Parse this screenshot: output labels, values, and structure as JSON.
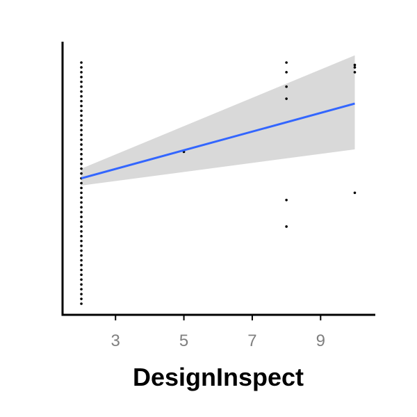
{
  "chart_data": {
    "type": "scatter",
    "title": "",
    "xlabel": "DesignInspect",
    "ylabel": "",
    "xlim": [
      1.45,
      10.6
    ],
    "ylim": [
      -0.05,
      1.07
    ],
    "x_ticks": [
      3,
      5,
      7,
      9
    ],
    "x_tick_labels": [
      "3",
      "5",
      "7",
      "9"
    ],
    "y_ticks": [],
    "grid": false,
    "legend": "none",
    "colors": {
      "points": "#000000",
      "fit_line": "#3366FF",
      "confidence_band": "#D9D9D9",
      "axis": "#000000",
      "tick_label": "#7F7F7F"
    },
    "series": [
      {
        "type": "scatter",
        "points": [
          {
            "x": 2,
            "y": 0.0
          },
          {
            "x": 2,
            "y": 0.02
          },
          {
            "x": 2,
            "y": 0.04
          },
          {
            "x": 2,
            "y": 0.06
          },
          {
            "x": 2,
            "y": 0.08
          },
          {
            "x": 2,
            "y": 0.1
          },
          {
            "x": 2,
            "y": 0.12
          },
          {
            "x": 2,
            "y": 0.14
          },
          {
            "x": 2,
            "y": 0.16
          },
          {
            "x": 2,
            "y": 0.18
          },
          {
            "x": 2,
            "y": 0.2
          },
          {
            "x": 2,
            "y": 0.22
          },
          {
            "x": 2,
            "y": 0.24
          },
          {
            "x": 2,
            "y": 0.26
          },
          {
            "x": 2,
            "y": 0.28
          },
          {
            "x": 2,
            "y": 0.3
          },
          {
            "x": 2,
            "y": 0.32
          },
          {
            "x": 2,
            "y": 0.34
          },
          {
            "x": 2,
            "y": 0.36
          },
          {
            "x": 2,
            "y": 0.38
          },
          {
            "x": 2,
            "y": 0.4
          },
          {
            "x": 2,
            "y": 0.42
          },
          {
            "x": 2,
            "y": 0.44
          },
          {
            "x": 2,
            "y": 0.46
          },
          {
            "x": 2,
            "y": 0.48
          },
          {
            "x": 2,
            "y": 0.5
          },
          {
            "x": 2,
            "y": 0.52
          },
          {
            "x": 2,
            "y": 0.54
          },
          {
            "x": 2,
            "y": 0.56
          },
          {
            "x": 2,
            "y": 0.58
          },
          {
            "x": 2,
            "y": 0.6
          },
          {
            "x": 2,
            "y": 0.62
          },
          {
            "x": 2,
            "y": 0.64
          },
          {
            "x": 2,
            "y": 0.66
          },
          {
            "x": 2,
            "y": 0.68
          },
          {
            "x": 2,
            "y": 0.7
          },
          {
            "x": 2,
            "y": 0.72
          },
          {
            "x": 2,
            "y": 0.74
          },
          {
            "x": 2,
            "y": 0.76
          },
          {
            "x": 2,
            "y": 0.78
          },
          {
            "x": 2,
            "y": 0.8
          },
          {
            "x": 2,
            "y": 0.82
          },
          {
            "x": 2,
            "y": 0.84
          },
          {
            "x": 2,
            "y": 0.86
          },
          {
            "x": 2,
            "y": 0.88
          },
          {
            "x": 2,
            "y": 0.9
          },
          {
            "x": 2,
            "y": 0.92
          },
          {
            "x": 2,
            "y": 0.94
          },
          {
            "x": 2,
            "y": 0.96
          },
          {
            "x": 2,
            "y": 0.98
          },
          {
            "x": 2,
            "y": 1.0
          },
          {
            "x": 5,
            "y": 0.63
          },
          {
            "x": 8,
            "y": 1.0
          },
          {
            "x": 8,
            "y": 0.96
          },
          {
            "x": 8,
            "y": 0.9
          },
          {
            "x": 8,
            "y": 0.85
          },
          {
            "x": 8,
            "y": 0.43
          },
          {
            "x": 8,
            "y": 0.32
          },
          {
            "x": 10,
            "y": 0.99
          },
          {
            "x": 10,
            "y": 0.98
          },
          {
            "x": 10,
            "y": 0.96
          },
          {
            "x": 10,
            "y": 0.46
          }
        ]
      },
      {
        "type": "line",
        "x": [
          2,
          10
        ],
        "y": [
          0.52,
          0.83
        ],
        "band_lower": [
          0.49,
          0.64
        ],
        "band_upper": [
          0.56,
          1.03
        ]
      }
    ]
  }
}
